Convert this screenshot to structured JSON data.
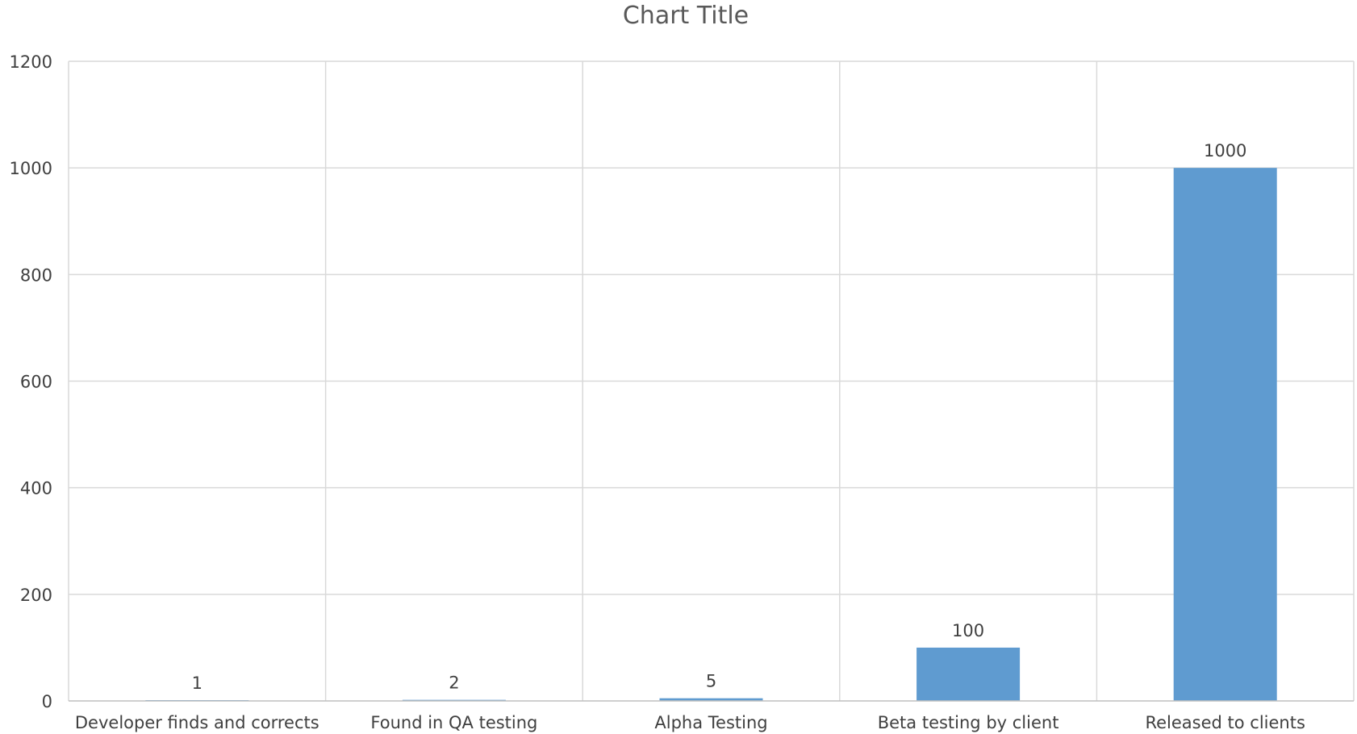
{
  "chart_data": {
    "type": "bar",
    "title": "Chart Title",
    "xlabel": "",
    "ylabel": "",
    "categories": [
      "Developer finds and corrects",
      "Found in QA testing",
      "Alpha Testing",
      "Beta testing by client",
      "Released to clients"
    ],
    "values": [
      1,
      2,
      5,
      100,
      1000
    ],
    "data_labels": [
      "1",
      "2",
      "5",
      "100",
      "1000"
    ],
    "ylim": [
      0,
      1200
    ],
    "yticks": [
      0,
      200,
      400,
      600,
      800,
      1000,
      1200
    ],
    "grid": "both",
    "legend": "none",
    "colors": {
      "bar": "#5f9bd0",
      "grid": "#d9d9d9",
      "axis": "#bfbfbf",
      "text": "#404040",
      "title": "#595959"
    }
  }
}
